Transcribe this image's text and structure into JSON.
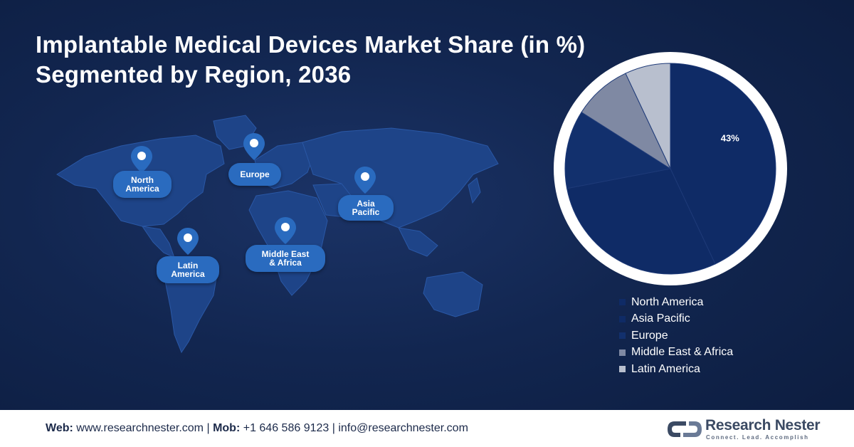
{
  "title": {
    "line1": "Implantable Medical Devices Market Share (in %)",
    "line2": "Segmented by Region, 2036"
  },
  "map": {
    "pins": [
      {
        "key": "north_america",
        "label1": "North",
        "label2": "America"
      },
      {
        "key": "europe",
        "label1": "Europe",
        "label2": ""
      },
      {
        "key": "asia_pacific",
        "label1": "Asia",
        "label2": "Pacific"
      },
      {
        "key": "latin_america",
        "label1": "Latin",
        "label2": "America"
      },
      {
        "key": "middle_east_africa",
        "label1": "Middle East",
        "label2": "& Africa"
      }
    ]
  },
  "chart_data": {
    "type": "pie",
    "title": "Implantable Medical Devices Market Share (in %) Segmented by Region, 2036",
    "categories": [
      "North America",
      "Asia Pacific",
      "Europe",
      "Middle East & Africa",
      "Latin America"
    ],
    "values": [
      43,
      29,
      12,
      9,
      7
    ],
    "data_labels": [
      "43%",
      "",
      "",
      "",
      ""
    ],
    "colors": [
      "#0f2b66",
      "#0f2b66",
      "#12306d",
      "#7f89a3",
      "#b8bfce"
    ],
    "legend_position": "bottom"
  },
  "footer": {
    "web_label": "Web:",
    "web_value": "www.researchnester.com",
    "sep1": "|",
    "mob_label": "Mob:",
    "mob_value": "+1 646 586 9123",
    "sep2": "|",
    "email": "info@researchnester.com",
    "logo_name": "Research Nester",
    "logo_tagline": "Connect. Lead. Accomplish"
  },
  "colors": {
    "background": "#122650",
    "map_land": "#1e4488",
    "pin_blue": "#2a6bbf",
    "ring": "#ffffff"
  }
}
